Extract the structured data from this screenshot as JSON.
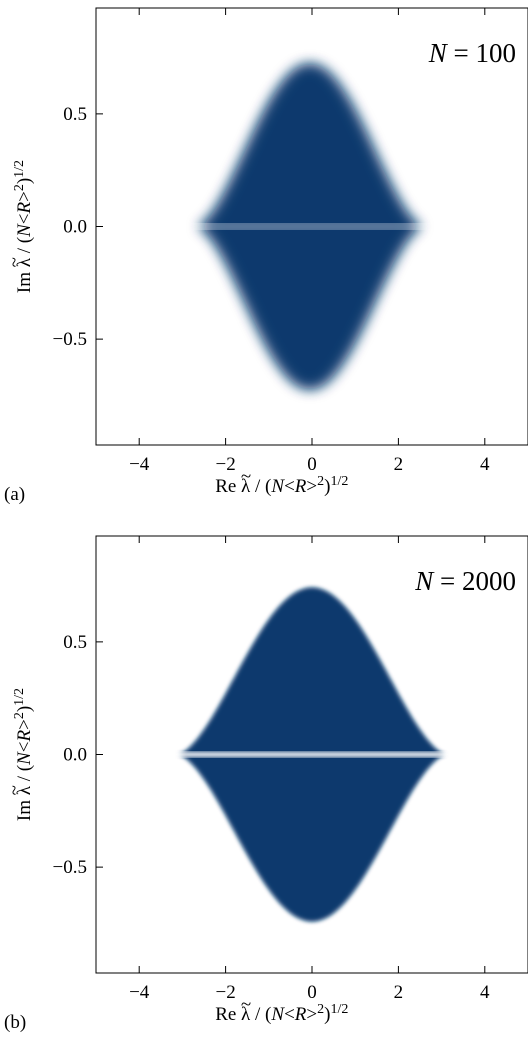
{
  "chart_data": [
    {
      "type": "heatmap",
      "panel_label": "(a)",
      "annotation": {
        "symbol": "N",
        "equals": " = ",
        "value": "100"
      },
      "xlabel": {
        "pre": "Re ",
        "lambda": "λ",
        "tilde": "~",
        "mid": " / (",
        "N": "N",
        "lt": "<",
        "R": "R",
        "gt": ">",
        "sup": "2",
        "close": ")",
        "power": "1/2"
      },
      "ylabel": {
        "pre": "Im ",
        "lambda": "λ",
        "tilde": "~",
        "mid": " / (",
        "N": "N",
        "lt": "<",
        "R": "R",
        "gt": ">",
        "sup": "2",
        "close": ")",
        "power": "1/2"
      },
      "xlim": [
        -5.0,
        5.0
      ],
      "ylim": [
        -0.97,
        0.97
      ],
      "xticks": [
        {
          "value": -4,
          "label": "−4"
        },
        {
          "value": -2,
          "label": "−2"
        },
        {
          "value": 0,
          "label": "0"
        },
        {
          "value": 2,
          "label": "2"
        },
        {
          "value": 4,
          "label": "4"
        }
      ],
      "yticks": [
        {
          "value": -0.5,
          "label": "−0.5"
        },
        {
          "value": 0.0,
          "label": "0.0"
        },
        {
          "value": 0.5,
          "label": "0.5"
        }
      ],
      "density": {
        "description_shape": "eigenvalue density, bell-shaped envelope symmetric about Im = 0 with a thin empty strip along the real axis",
        "x_center": -0.05,
        "x_extent": 2.6,
        "y_peak": 0.72,
        "blur": 0.09,
        "color": "#0f3f77",
        "gap_color": "#ffffff"
      }
    },
    {
      "type": "heatmap",
      "panel_label": "(b)",
      "annotation": {
        "symbol": "N",
        "equals": " = ",
        "value": "2000"
      },
      "xlabel": {
        "pre": "Re ",
        "lambda": "λ",
        "tilde": "~",
        "mid": " / (",
        "N": "N",
        "lt": "<",
        "R": "R",
        "gt": ">",
        "sup": "2",
        "close": ")",
        "power": "1/2"
      },
      "ylabel": {
        "pre": "Im ",
        "lambda": "λ",
        "tilde": "~",
        "mid": " / (",
        "N": "N",
        "lt": "<",
        "R": "R",
        "gt": ">",
        "sup": "2",
        "close": ")",
        "power": "1/2"
      },
      "xlim": [
        -5.0,
        5.0
      ],
      "ylim": [
        -0.97,
        0.97
      ],
      "xticks": [
        {
          "value": -4,
          "label": "−4"
        },
        {
          "value": -2,
          "label": "−2"
        },
        {
          "value": 0,
          "label": "0"
        },
        {
          "value": 2,
          "label": "2"
        },
        {
          "value": 4,
          "label": "4"
        }
      ],
      "yticks": [
        {
          "value": -0.5,
          "label": "−0.5"
        },
        {
          "value": 0.0,
          "label": "0.0"
        },
        {
          "value": 0.5,
          "label": "0.5"
        }
      ],
      "density": {
        "description_shape": "eigenvalue density, bell-shaped envelope symmetric about Im = 0 with a thin empty strip along the real axis",
        "x_center": 0.0,
        "x_extent": 3.1,
        "y_peak": 0.74,
        "blur": 0.03,
        "color": "#0f3f77",
        "gap_color": "#ffffff"
      }
    }
  ]
}
